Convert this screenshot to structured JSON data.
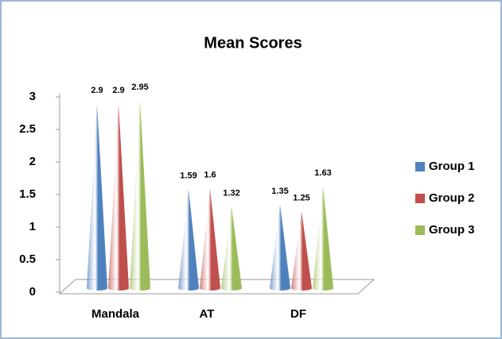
{
  "chart_data": {
    "type": "cone_bar",
    "title": "Mean Scores",
    "categories": [
      "Mandala",
      "AT",
      "DF"
    ],
    "series": [
      {
        "name": "Group 1",
        "color": "#4f81bd",
        "values": [
          2.9,
          1.59,
          1.35
        ]
      },
      {
        "name": "Group 2",
        "color": "#c0504d",
        "values": [
          2.9,
          1.6,
          1.25
        ]
      },
      {
        "name": "Group 3",
        "color": "#9bbb59",
        "values": [
          2.95,
          1.32,
          1.63
        ]
      }
    ],
    "ylim": [
      0,
      3
    ],
    "yticks": [
      0,
      0.5,
      1,
      1.5,
      2,
      2.5,
      3
    ],
    "legend": "right"
  }
}
